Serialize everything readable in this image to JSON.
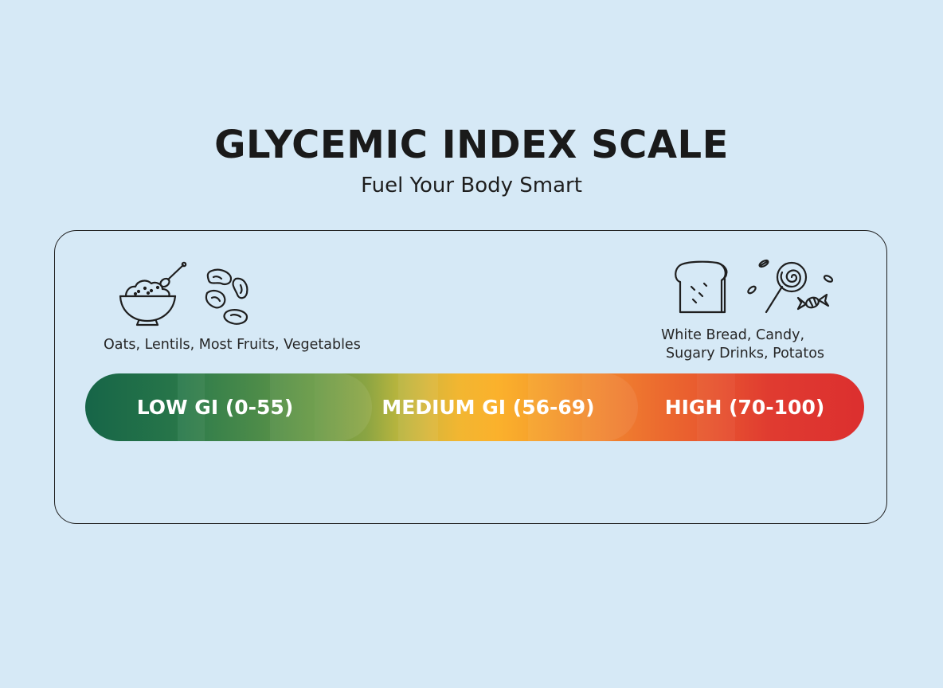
{
  "header": {
    "title": "GLYCEMIC INDEX SCALE",
    "subtitle": "Fuel Your Body Smart"
  },
  "low_side": {
    "foods_label": "Oats, Lentils, Most Fruits, Vegetables",
    "icons": [
      "oatmeal-bowl-icon",
      "beans-icon"
    ]
  },
  "high_side": {
    "foods_label_line1": "White Bread, Candy,",
    "foods_label_line2": "Sugary Drinks, Potatos",
    "icons": [
      "bread-slice-icon",
      "lollipop-candy-icon"
    ]
  },
  "scale": {
    "low": {
      "label": "LOW GI (0-55)",
      "min": 0,
      "max": 55,
      "color": "#17694b"
    },
    "medium": {
      "label": "MEDIUM GI (56-69)",
      "min": 56,
      "max": 69,
      "color": "#fbb12c"
    },
    "high": {
      "label": "HIGH (70-100)",
      "min": 70,
      "max": 100,
      "color": "#dc2f2f"
    }
  },
  "colors": {
    "background": "#d6e9f6",
    "outline": "#1f1f1f"
  }
}
